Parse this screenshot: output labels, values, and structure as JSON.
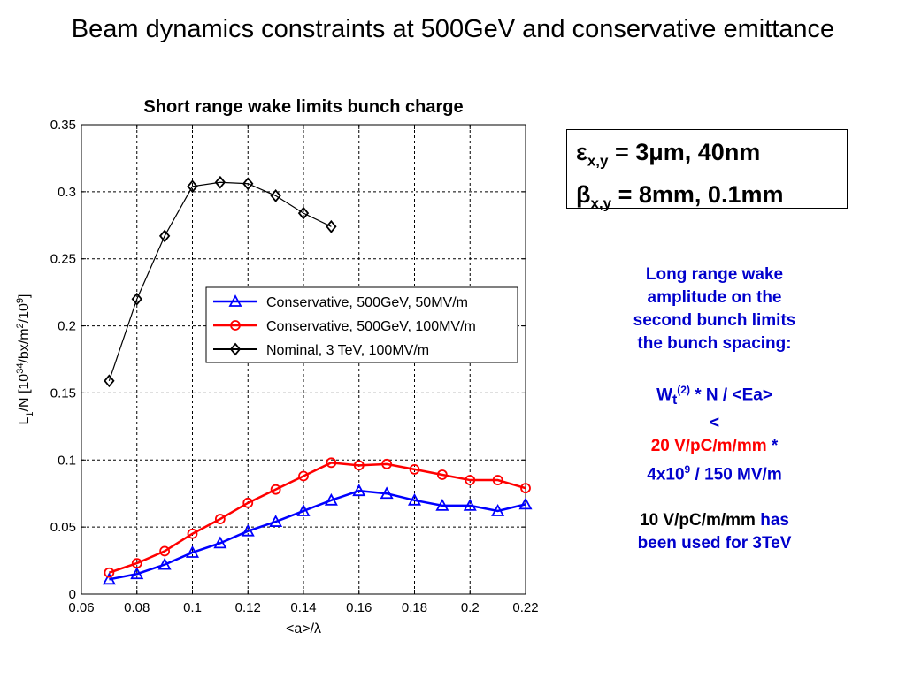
{
  "slide": {
    "title": "Beam dynamics constraints at 500GeV and conservative emittance"
  },
  "params": {
    "emit_prefix": "ε",
    "emit_sub": "x,y",
    "emit_value": " = 3μm, 40nm",
    "beta_prefix": "β",
    "beta_sub": "x,y",
    "beta_value": " = 8mm, 0.1mm"
  },
  "note": {
    "lines": [
      "Long range wake",
      "amplitude on the",
      "second bunch limits",
      "the bunch spacing:"
    ],
    "formula_W": "W",
    "formula_sub": "t",
    "formula_sup": "(2)",
    "formula_rest": " * N / <Ea>",
    "lt": "<",
    "limit_red": "20 V/pC/m/mm",
    "limit_star": " *",
    "denom_base": "4x10",
    "denom_sup": "9",
    "denom_rest": " / 150 MV/m",
    "used_black": "10 V/pC/m/mm",
    "used_blue1": " has",
    "used_blue2": "been used for 3TeV"
  },
  "chart_data": {
    "type": "line",
    "title": "Short range wake limits bunch charge",
    "xlabel": "<a>/λ",
    "ylabel_parts": [
      "L",
      "1",
      "/N [10",
      "34",
      "/bx/m",
      "2",
      "/10",
      "9",
      "]"
    ],
    "xlim": [
      0.06,
      0.22
    ],
    "ylim": [
      0,
      0.35
    ],
    "xticks": [
      0.06,
      0.08,
      0.1,
      0.12,
      0.14,
      0.16,
      0.18,
      0.2,
      0.22
    ],
    "xtick_labels": [
      "0.06",
      "0.08",
      "0.1",
      "0.12",
      "0.14",
      "0.16",
      "0.18",
      "0.2",
      "0.22"
    ],
    "yticks": [
      0,
      0.05,
      0.1,
      0.15,
      0.2,
      0.25,
      0.3,
      0.35
    ],
    "ytick_labels": [
      "0",
      "0.05",
      "0.1",
      "0.15",
      "0.2",
      "0.25",
      "0.3",
      "0.35"
    ],
    "grid": true,
    "legend_position": "center-right",
    "series": [
      {
        "name": "Conservative, 500GeV, 50MV/m",
        "color": "#0000ff",
        "marker": "triangle",
        "x": [
          0.07,
          0.08,
          0.09,
          0.1,
          0.11,
          0.12,
          0.13,
          0.14,
          0.15,
          0.16,
          0.17,
          0.18,
          0.19,
          0.2,
          0.21,
          0.22
        ],
        "y": [
          0.011,
          0.015,
          0.022,
          0.031,
          0.038,
          0.047,
          0.054,
          0.062,
          0.07,
          0.077,
          0.075,
          0.07,
          0.066,
          0.066,
          0.062,
          0.067
        ]
      },
      {
        "name": "Conservative, 500GeV, 100MV/m",
        "color": "#ff0000",
        "marker": "circle",
        "x": [
          0.07,
          0.08,
          0.09,
          0.1,
          0.11,
          0.12,
          0.13,
          0.14,
          0.15,
          0.16,
          0.17,
          0.18,
          0.19,
          0.2,
          0.21,
          0.22
        ],
        "y": [
          0.016,
          0.023,
          0.032,
          0.045,
          0.056,
          0.068,
          0.078,
          0.088,
          0.098,
          0.096,
          0.097,
          0.093,
          0.089,
          0.085,
          0.085,
          0.079
        ]
      },
      {
        "name": "Nominal, 3 TeV, 100MV/m",
        "color": "#000000",
        "marker": "diamond",
        "x": [
          0.07,
          0.08,
          0.09,
          0.1,
          0.11,
          0.12,
          0.13,
          0.14,
          0.15
        ],
        "y": [
          0.159,
          0.22,
          0.267,
          0.304,
          0.307,
          0.306,
          0.297,
          0.284,
          0.274
        ]
      }
    ]
  }
}
